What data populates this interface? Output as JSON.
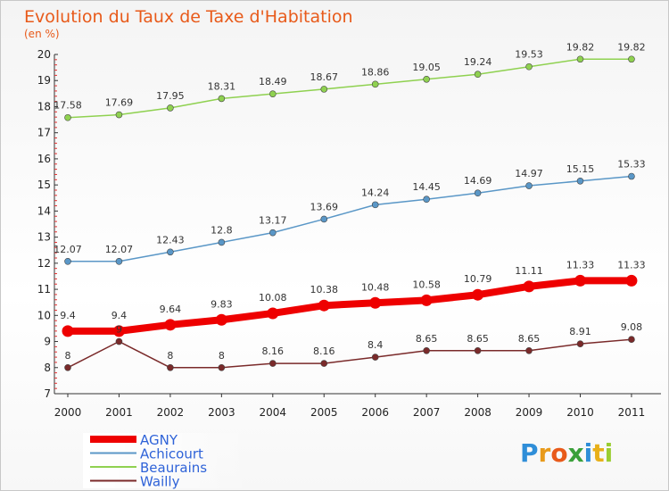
{
  "chart_data": {
    "type": "line",
    "title": "Evolution du Taux de Taxe d'Habitation",
    "subtitle": "(en %)",
    "xlabel": "",
    "ylabel": "",
    "x": [
      "2000",
      "2001",
      "2002",
      "2003",
      "2004",
      "2005",
      "2006",
      "2007",
      "2008",
      "2009",
      "2010",
      "2011"
    ],
    "ylim": [
      7,
      20
    ],
    "yticks": [
      7,
      8,
      9,
      10,
      11,
      12,
      13,
      14,
      15,
      16,
      17,
      18,
      19,
      20
    ],
    "grid": false,
    "legend_position": "bottom-left",
    "series": [
      {
        "name": "AGNY",
        "color": "#ee0000",
        "emphasis": true,
        "values": [
          9.4,
          9.4,
          9.64,
          9.83,
          10.08,
          10.38,
          10.48,
          10.58,
          10.79,
          11.11,
          11.33,
          11.33
        ],
        "labels": [
          "9.4",
          "9.4",
          "9.64",
          "9.83",
          "10.08",
          "10.38",
          "10.48",
          "10.58",
          "10.79",
          "11.11",
          "11.33",
          "11.33"
        ]
      },
      {
        "name": "Achicourt",
        "color": "#5a97c7",
        "emphasis": false,
        "values": [
          12.07,
          12.07,
          12.43,
          12.8,
          13.17,
          13.69,
          14.24,
          14.45,
          14.69,
          14.97,
          15.15,
          15.33
        ],
        "labels": [
          "12.07",
          "12.07",
          "12.43",
          "12.8",
          "13.17",
          "13.69",
          "14.24",
          "14.45",
          "14.69",
          "14.97",
          "15.15",
          "15.33"
        ]
      },
      {
        "name": "Beaurains",
        "color": "#8fd150",
        "emphasis": false,
        "values": [
          17.58,
          17.69,
          17.95,
          18.31,
          18.49,
          18.67,
          18.86,
          19.05,
          19.24,
          19.53,
          19.82,
          19.82
        ],
        "labels": [
          "17.58",
          "17.69",
          "17.95",
          "18.31",
          "18.49",
          "18.67",
          "18.86",
          "19.05",
          "19.24",
          "19.53",
          "19.82",
          "19.82"
        ]
      },
      {
        "name": "Wailly",
        "color": "#7a2a2a",
        "emphasis": false,
        "values": [
          8,
          9,
          8,
          8,
          8.16,
          8.16,
          8.4,
          8.65,
          8.65,
          8.65,
          8.91,
          9.08
        ],
        "labels": [
          "8",
          "9",
          "8",
          "8",
          "8.16",
          "8.16",
          "8.4",
          "8.65",
          "8.65",
          "8.65",
          "8.91",
          "9.08"
        ]
      }
    ]
  },
  "logo": {
    "text": "Proxiti"
  }
}
